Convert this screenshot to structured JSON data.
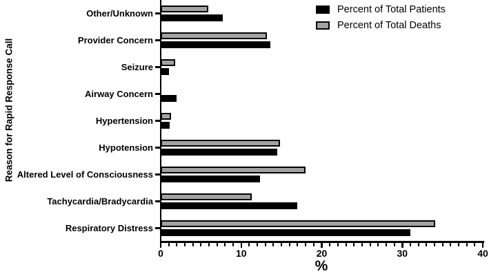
{
  "chart_data": {
    "type": "bar",
    "orientation": "horizontal",
    "title": "",
    "xlabel": "%",
    "ylabel": "Reason for Rapid Response Call",
    "xlim": [
      0,
      40
    ],
    "x_major_ticks": [
      0,
      10,
      20,
      30,
      40
    ],
    "x_minor_tick_step": 1,
    "grid": false,
    "legend_position": "top-right",
    "bar_outline_color": "#000000",
    "categories_top_to_bottom": [
      "Other/Unknown",
      "Provider Concern",
      "Seizure",
      "Airway Concern",
      "Hypertension",
      "Hypotension",
      "Altered Level of Consciousness",
      "Tachycardia/Bradycardia",
      "Respiratory Distress"
    ],
    "series": [
      {
        "name": "Percent of Total Patients",
        "color": "#000000",
        "values": [
          7.7,
          13.6,
          1.0,
          2.0,
          1.1,
          14.5,
          12.3,
          17.0,
          31.0
        ]
      },
      {
        "name": "Percent of Total Deaths",
        "color": "#a2a2a2",
        "values": [
          5.9,
          13.2,
          1.8,
          0,
          1.3,
          14.8,
          18.0,
          11.3,
          34.1
        ]
      }
    ]
  }
}
